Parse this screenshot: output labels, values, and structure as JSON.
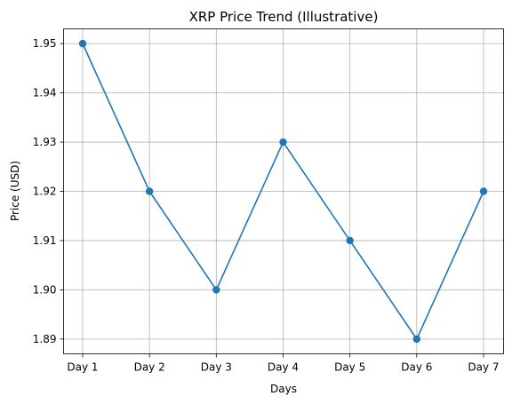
{
  "chart_data": {
    "type": "line",
    "title": "XRP Price Trend (Illustrative)",
    "xlabel": "Days",
    "ylabel": "Price (USD)",
    "categories": [
      "Day 1",
      "Day 2",
      "Day 3",
      "Day 4",
      "Day 5",
      "Day 6",
      "Day 7"
    ],
    "series": [
      {
        "values": [
          1.95,
          1.92,
          1.9,
          1.93,
          1.91,
          1.89,
          1.92
        ],
        "color": "#1f77b4",
        "marker": "circle"
      }
    ],
    "yticks": [
      "1.89",
      "1.90",
      "1.91",
      "1.92",
      "1.93",
      "1.94",
      "1.95"
    ],
    "ylim": [
      1.887,
      1.953
    ],
    "grid": true,
    "legend": "none"
  }
}
